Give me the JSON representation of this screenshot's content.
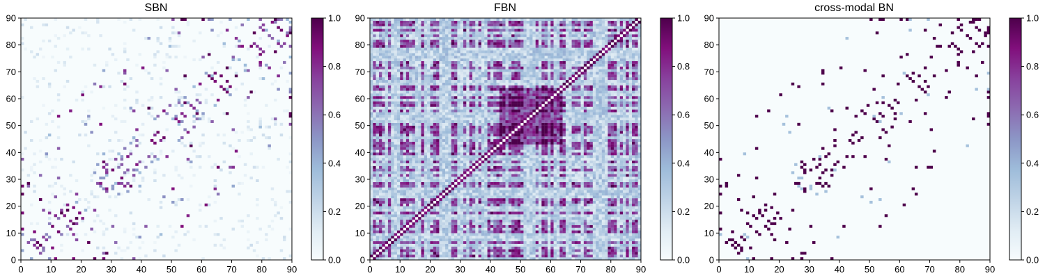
{
  "chart_data": [
    {
      "type": "heatmap",
      "title": "SBN",
      "xlim": [
        0,
        90
      ],
      "ylim": [
        0,
        90
      ],
      "x_ticks": [
        "0",
        "10",
        "20",
        "30",
        "40",
        "50",
        "60",
        "70",
        "80",
        "90"
      ],
      "y_ticks": [
        "0",
        "10",
        "20",
        "30",
        "40",
        "50",
        "60",
        "70",
        "80",
        "90"
      ],
      "matrix_size": 90,
      "colormap": [
        "#f7fcfd",
        "#e0ecf4",
        "#bfd3e6",
        "#9ebcda",
        "#8c96c6",
        "#8c6bb1",
        "#88419d",
        "#810f7c",
        "#4d004b"
      ],
      "colorbar": {
        "range": [
          0,
          1
        ],
        "ticks": [
          "0.0",
          "0.2",
          "0.4",
          "0.6",
          "0.8",
          "1.0"
        ]
      },
      "seed": 11,
      "pattern": "sparse"
    },
    {
      "type": "heatmap",
      "title": "FBN",
      "xlim": [
        0,
        90
      ],
      "ylim": [
        0,
        90
      ],
      "x_ticks": [
        "0",
        "10",
        "20",
        "30",
        "40",
        "50",
        "60",
        "70",
        "80",
        "90"
      ],
      "y_ticks": [
        "0",
        "10",
        "20",
        "30",
        "40",
        "50",
        "60",
        "70",
        "80",
        "90"
      ],
      "matrix_size": 90,
      "colormap": [
        "#f7fcfd",
        "#e0ecf4",
        "#bfd3e6",
        "#9ebcda",
        "#8c96c6",
        "#8c6bb1",
        "#88419d",
        "#810f7c",
        "#4d004b"
      ],
      "colorbar": {
        "range": [
          0,
          1
        ],
        "ticks": [
          "0.0",
          "0.2",
          "0.4",
          "0.6",
          "0.8",
          "1.0"
        ]
      },
      "seed": 29,
      "pattern": "dense"
    },
    {
      "type": "heatmap",
      "title": "cross-modal BN",
      "xlim": [
        0,
        90
      ],
      "ylim": [
        0,
        90
      ],
      "x_ticks": [
        "0",
        "10",
        "20",
        "30",
        "40",
        "50",
        "60",
        "70",
        "80",
        "90"
      ],
      "y_ticks": [
        "0",
        "10",
        "20",
        "30",
        "40",
        "50",
        "60",
        "70",
        "80",
        "90"
      ],
      "matrix_size": 90,
      "colormap": [
        "#f7fcfd",
        "#e0ecf4",
        "#bfd3e6",
        "#9ebcda",
        "#8c96c6",
        "#8c6bb1",
        "#88419d",
        "#810f7c",
        "#4d004b"
      ],
      "colorbar": {
        "range": [
          0,
          1
        ],
        "ticks": [
          "0.0",
          "0.2",
          "0.4",
          "0.6",
          "0.8",
          "1.0"
        ]
      },
      "seed": 11,
      "pattern": "sparse-binary"
    }
  ]
}
